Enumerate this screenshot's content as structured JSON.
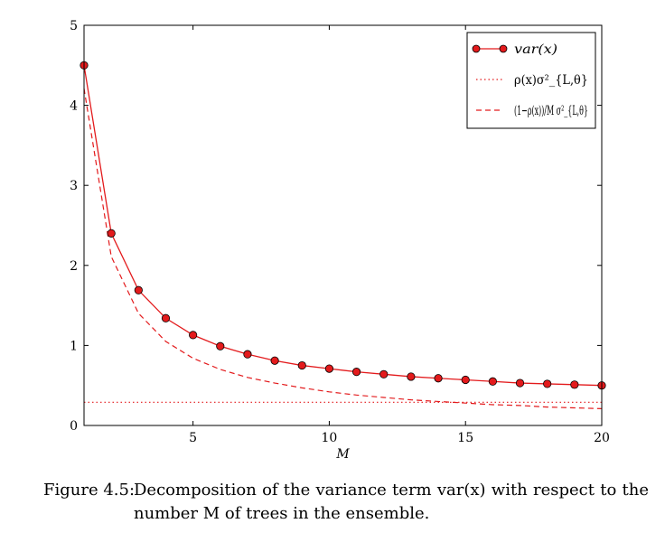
{
  "chart_data": {
    "type": "line",
    "xlabel": "M",
    "ylabel": "",
    "xlim": [
      1,
      20
    ],
    "ylim": [
      0,
      5
    ],
    "x_ticks": [
      5,
      10,
      15,
      20
    ],
    "y_ticks": [
      0,
      1,
      2,
      3,
      4,
      5
    ],
    "grid": false,
    "legend_position": "top-right",
    "colors": {
      "series": "#e31a1c",
      "marker_fill": "#e31a1c"
    },
    "series": [
      {
        "name": "var(x)",
        "style": "solid-markers",
        "x": [
          1,
          2,
          3,
          4,
          5,
          6,
          7,
          8,
          9,
          10,
          11,
          12,
          13,
          14,
          15,
          16,
          17,
          18,
          19,
          20
        ],
        "values": [
          4.5,
          2.4,
          1.69,
          1.34,
          1.13,
          0.99,
          0.89,
          0.81,
          0.75,
          0.71,
          0.67,
          0.64,
          0.61,
          0.59,
          0.57,
          0.55,
          0.53,
          0.52,
          0.51,
          0.5
        ]
      },
      {
        "name": "ρ(x)σ²_{L,θ}",
        "style": "dotted",
        "x": [
          1,
          20
        ],
        "values": [
          0.29,
          0.29
        ]
      },
      {
        "name": "(1−ρ(x))/M σ²_{L,θ}",
        "style": "dashed",
        "x": [
          1,
          2,
          3,
          4,
          5,
          6,
          7,
          8,
          9,
          10,
          11,
          12,
          13,
          14,
          15,
          16,
          17,
          18,
          19,
          20
        ],
        "values": [
          4.21,
          2.11,
          1.4,
          1.05,
          0.84,
          0.7,
          0.6,
          0.53,
          0.47,
          0.42,
          0.38,
          0.35,
          0.32,
          0.3,
          0.28,
          0.26,
          0.25,
          0.23,
          0.22,
          0.21
        ]
      }
    ]
  },
  "caption": {
    "label": "Figure 4.5:",
    "text": "Decomposition of the variance term var(x) with respect to the number M of trees in the ensemble."
  }
}
